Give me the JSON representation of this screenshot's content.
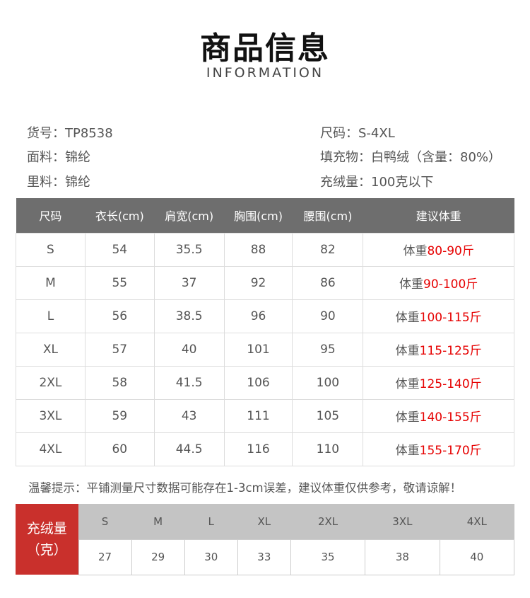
{
  "header": {
    "title": "商品信息",
    "subtitle": "INFORMATION"
  },
  "info": {
    "item_no": "货号：TP8538",
    "fabric": "面料：锦纶",
    "lining": "里料：锦纶",
    "size": "尺码：S-4XL",
    "filling": "填充物：白鸭绒（含量：80%）",
    "fill_amount": "充绒量：100克以下"
  },
  "size_table": {
    "headers": [
      "尺码",
      "衣长(cm)",
      "肩宽(cm)",
      "胸围(cm)",
      "腰围(cm)",
      "建议体重"
    ],
    "rows": [
      [
        "S",
        "54",
        "35.5",
        "88",
        "82",
        "体重",
        "80-90斤"
      ],
      [
        "M",
        "55",
        "37",
        "92",
        "86",
        "体重",
        "90-100斤"
      ],
      [
        "L",
        "56",
        "38.5",
        "96",
        "90",
        "体重",
        "100-115斤"
      ],
      [
        "XL",
        "57",
        "40",
        "101",
        "95",
        "体重",
        "115-125斤"
      ],
      [
        "2XL",
        "58",
        "41.5",
        "106",
        "100",
        "体重",
        "125-140斤"
      ],
      [
        "3XL",
        "59",
        "43",
        "111",
        "105",
        "体重",
        "140-155斤"
      ],
      [
        "4XL",
        "60",
        "44.5",
        "116",
        "110",
        "体重",
        "155-170斤"
      ]
    ]
  },
  "note": "温馨提示：平铺测量尺寸数据可能存在1-3cm误差，建议体重仅供参考，敬请谅解！",
  "down_table": {
    "label_line1": "充绒量",
    "label_line2": "（克）",
    "sizes": [
      "S",
      "M",
      "L",
      "XL",
      "2XL",
      "3XL",
      "4XL"
    ],
    "grams": [
      "27",
      "29",
      "30",
      "33",
      "35",
      "38",
      "40"
    ]
  },
  "colors": {
    "header_bg": "#6e6e6e",
    "accent_red": "#e60000",
    "label_bg": "#c9302c"
  }
}
